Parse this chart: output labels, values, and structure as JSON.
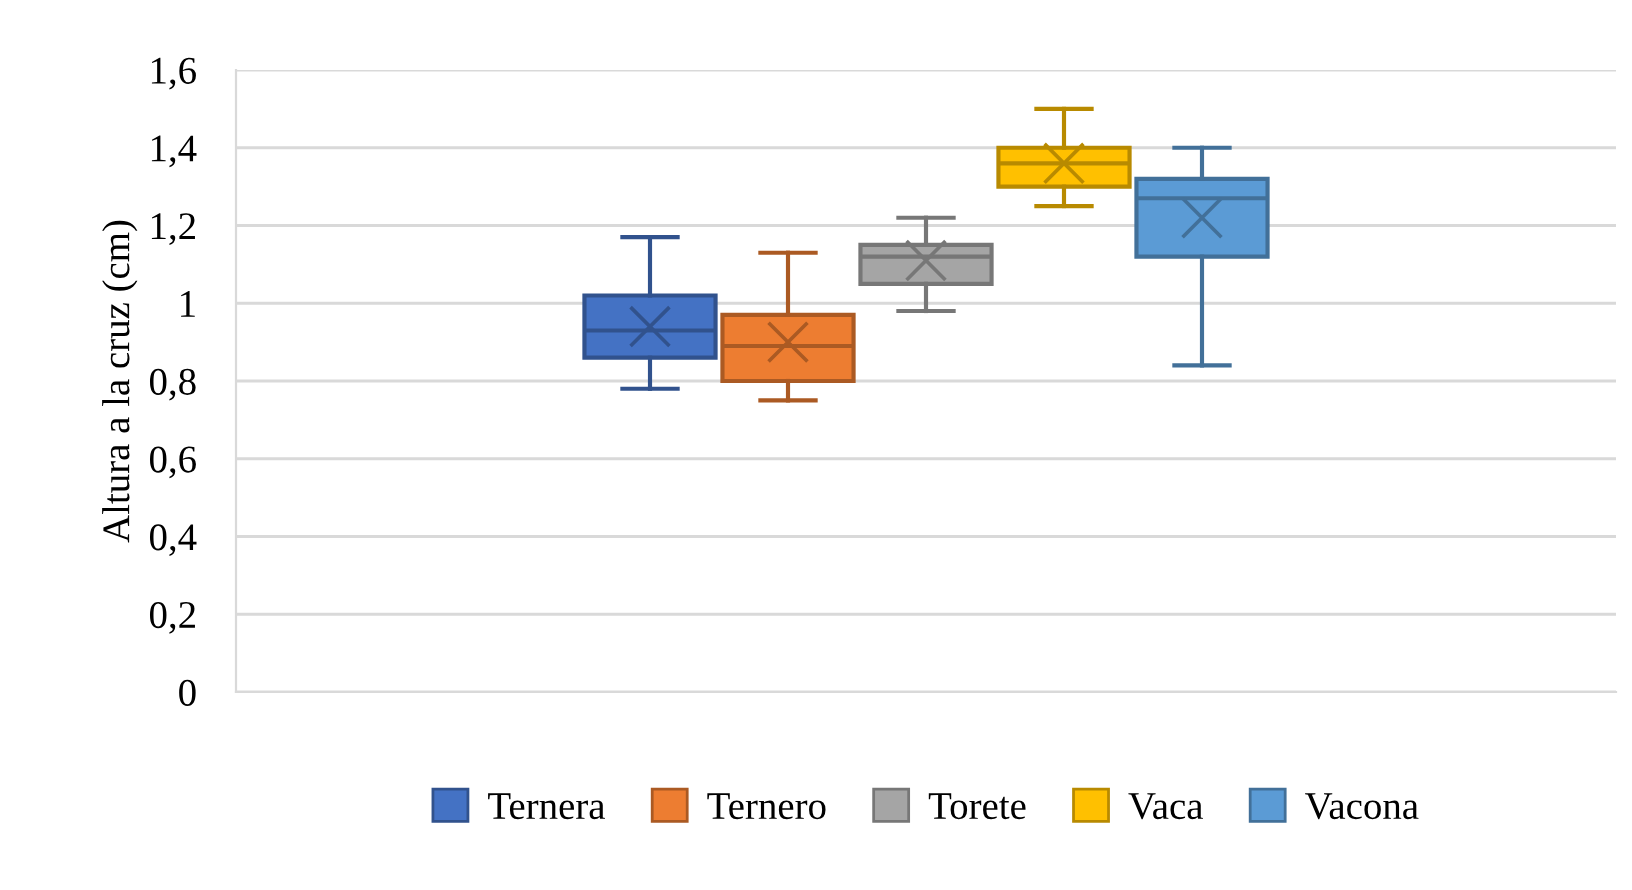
{
  "chart_data": {
    "type": "box",
    "ylabel": "Altura a la cruz (cm)",
    "categories": [
      null
    ],
    "series": [
      {
        "name": "Ternera",
        "color": "#4472c4",
        "boxes": [
          {
            "low": 0.78,
            "q1": 0.86,
            "median": 0.93,
            "q3": 1.02,
            "high": 1.17,
            "mean": 0.94
          }
        ]
      },
      {
        "name": "Ternero",
        "color": "#ed7d31",
        "boxes": [
          {
            "low": 0.75,
            "q1": 0.8,
            "median": 0.89,
            "q3": 0.97,
            "high": 1.13,
            "mean": 0.9
          }
        ]
      },
      {
        "name": "Torete",
        "color": "#a5a5a5",
        "boxes": [
          {
            "low": 0.98,
            "q1": 1.05,
            "median": 1.12,
            "q3": 1.15,
            "high": 1.22,
            "mean": 1.11
          }
        ]
      },
      {
        "name": "Vaca",
        "color": "#ffc000",
        "boxes": [
          {
            "low": 1.25,
            "q1": 1.3,
            "median": 1.36,
            "q3": 1.4,
            "high": 1.5,
            "mean": 1.36
          }
        ]
      },
      {
        "name": "Vacona",
        "color": "#5b9bd5",
        "boxes": [
          {
            "low": 0.84,
            "q1": 1.12,
            "median": 1.27,
            "q3": 1.32,
            "high": 1.4,
            "mean": 1.22
          }
        ]
      }
    ],
    "ylim": [
      0,
      1.6
    ],
    "yticks": [
      0,
      {
        "value": 0.2,
        "label": "0,2"
      },
      {
        "value": 0.4,
        "label": "0,4"
      },
      {
        "value": 0.6,
        "label": "0,6"
      },
      {
        "value": 0.8,
        "label": "0,8"
      },
      1,
      {
        "value": 1.2,
        "label": "1,2"
      },
      {
        "value": 1.4,
        "label": "1,4"
      },
      {
        "value": 1.6,
        "label": "1,6"
      }
    ],
    "grid": "y",
    "legend": "bottom"
  }
}
